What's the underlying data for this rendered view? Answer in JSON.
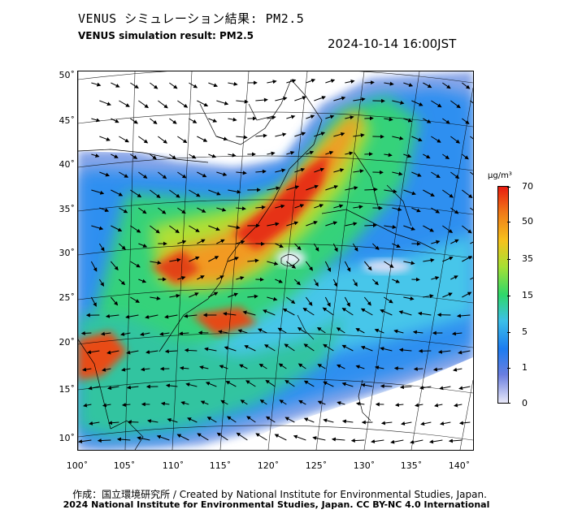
{
  "header": {
    "title_jp": "VENUS シミュレーション結果: PM2.5",
    "title_en": "VENUS simulation result: PM2.5",
    "timestamp": "2024-10-14 16:00JST"
  },
  "map": {
    "lat_labels": [
      "50˚",
      "45˚",
      "40˚",
      "35˚",
      "30˚",
      "25˚",
      "20˚",
      "15˚",
      "10˚"
    ],
    "lon_labels": [
      "100˚",
      "105˚",
      "110˚",
      "115˚",
      "120˚",
      "125˚",
      "130˚",
      "135˚",
      "140˚"
    ],
    "background_color": "#ffffff",
    "coast_color": "#000000",
    "wind_arrows": "black-arrows"
  },
  "colorbar": {
    "unit": "µg/m³",
    "ticks": [
      "70",
      "50",
      "35",
      "15",
      "5",
      "1",
      "0"
    ],
    "colors": [
      "#e8e8f8",
      "#6a7ee0",
      "#1c7cf0",
      "#3cc0e8",
      "#2ed86a",
      "#a6e034",
      "#f6c21c",
      "#f07a18",
      "#e81c10"
    ]
  },
  "footer": {
    "credit_line": "作成：国立環境研究所 / Created by National Institute for Environmental Studies, Japan.",
    "copyright_line": "2024 National Institute for Environmental Studies, Japan. CC BY-NC 4.0 International"
  }
}
